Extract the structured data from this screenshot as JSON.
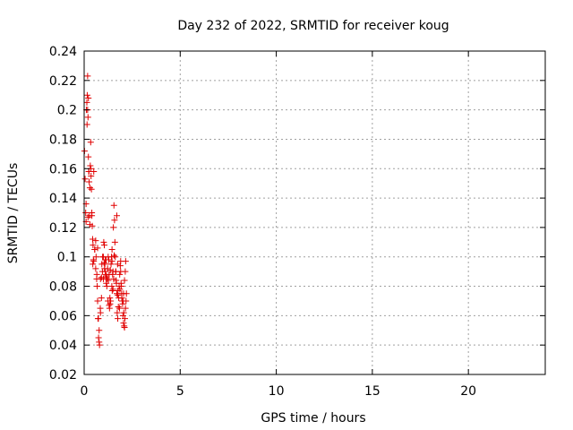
{
  "chart_data": {
    "type": "scatter",
    "title": "Day 232 of 2022, SRMTID for receiver koug",
    "xlabel": "GPS time / hours",
    "ylabel": "SRMTID / TECUs",
    "xlim": [
      0,
      24
    ],
    "ylim": [
      0.02,
      0.24
    ],
    "xticks": [
      0,
      5,
      10,
      15,
      20
    ],
    "xtick_labels": [
      "0",
      "5",
      "10",
      "15",
      "20"
    ],
    "yticks": [
      0.02,
      0.04,
      0.06,
      0.08,
      0.1,
      0.12,
      0.14,
      0.16,
      0.18,
      0.2,
      0.22,
      0.24
    ],
    "ytick_labels": [
      "0.02",
      "0.04",
      "0.06",
      "0.08",
      "0.1",
      "0.12",
      "0.14",
      "0.16",
      "0.18",
      "0.2",
      "0.22",
      "0.24"
    ],
    "grid": true,
    "marker": "plus",
    "color": "#e00000",
    "series": [
      {
        "x": [
          0.02,
          0.05,
          0.08,
          0.1,
          0.12,
          0.14,
          0.16,
          0.18,
          0.2,
          0.22,
          0.24,
          0.26,
          0.28,
          0.3,
          0.32,
          0.34,
          0.36,
          0.38,
          0.4,
          0.42,
          0.44,
          0.46,
          0.48,
          0.5,
          0.55,
          0.6,
          0.65,
          0.7,
          0.72,
          0.75,
          0.78,
          0.8,
          0.85,
          0.9,
          0.95,
          1.0,
          1.02,
          1.05,
          1.08,
          1.1,
          1.12,
          1.15,
          1.18,
          1.2,
          1.22,
          1.25,
          1.28,
          1.3,
          1.32,
          1.35,
          1.38,
          1.4,
          1.42,
          1.45,
          1.48,
          1.5,
          1.52,
          1.55,
          1.58,
          1.6,
          1.62,
          1.65,
          1.68,
          1.7,
          1.72,
          1.75,
          1.78,
          1.8,
          1.82,
          1.85,
          1.88,
          1.9,
          1.92,
          1.95,
          1.98,
          2.0,
          2.02,
          2.05,
          2.08,
          2.1,
          2.12,
          2.15,
          2.18,
          2.2,
          0.15,
          0.18,
          0.22,
          0.35,
          0.4,
          0.45,
          0.62,
          0.68,
          0.74,
          0.92,
          1.0,
          1.06,
          1.14,
          1.24,
          1.34,
          1.44,
          1.54,
          1.64,
          1.74,
          1.84,
          1.94,
          2.04,
          2.14,
          0.6,
          0.66,
          0.78,
          0.84,
          0.96,
          1.04,
          1.16,
          1.26,
          1.36,
          1.46,
          1.56,
          1.66,
          1.76,
          1.86,
          1.96,
          2.06,
          2.16,
          0.1,
          0.2,
          0.3,
          0.5,
          0.7,
          0.9,
          1.1,
          1.3,
          1.5,
          1.7,
          1.9,
          2.1,
          0.25,
          0.55,
          0.85,
          1.15,
          1.45,
          1.75,
          2.05
        ],
        "y": [
          0.172,
          0.153,
          0.13,
          0.124,
          0.2,
          0.205,
          0.21,
          0.223,
          0.195,
          0.168,
          0.158,
          0.151,
          0.128,
          0.147,
          0.162,
          0.178,
          0.155,
          0.146,
          0.13,
          0.121,
          0.112,
          0.108,
          0.098,
          0.097,
          0.105,
          0.111,
          0.085,
          0.07,
          0.058,
          0.045,
          0.042,
          0.04,
          0.062,
          0.072,
          0.09,
          0.1,
          0.11,
          0.108,
          0.095,
          0.09,
          0.088,
          0.082,
          0.08,
          0.085,
          0.092,
          0.1,
          0.098,
          0.088,
          0.065,
          0.068,
          0.07,
          0.095,
          0.1,
          0.105,
          0.088,
          0.078,
          0.12,
          0.135,
          0.125,
          0.11,
          0.1,
          0.09,
          0.082,
          0.075,
          0.062,
          0.058,
          0.066,
          0.072,
          0.08,
          0.088,
          0.094,
          0.09,
          0.082,
          0.075,
          0.07,
          0.068,
          0.06,
          0.055,
          0.053,
          0.052,
          0.058,
          0.065,
          0.07,
          0.075,
          0.19,
          0.2,
          0.208,
          0.16,
          0.128,
          0.095,
          0.1,
          0.08,
          0.058,
          0.095,
          0.085,
          0.092,
          0.098,
          0.07,
          0.072,
          0.08,
          0.085,
          0.09,
          0.095,
          0.065,
          0.08,
          0.07,
          0.09,
          0.092,
          0.088,
          0.05,
          0.065,
          0.1,
          0.096,
          0.086,
          0.084,
          0.091,
          0.077,
          0.101,
          0.084,
          0.077,
          0.078,
          0.072,
          0.062,
          0.097,
          0.136,
          0.127,
          0.122,
          0.158,
          0.106,
          0.086,
          0.098,
          0.067,
          0.09,
          0.128,
          0.097,
          0.084,
          0.158,
          0.105,
          0.085,
          0.087,
          0.097,
          0.074,
          0.075
        ]
      }
    ]
  }
}
